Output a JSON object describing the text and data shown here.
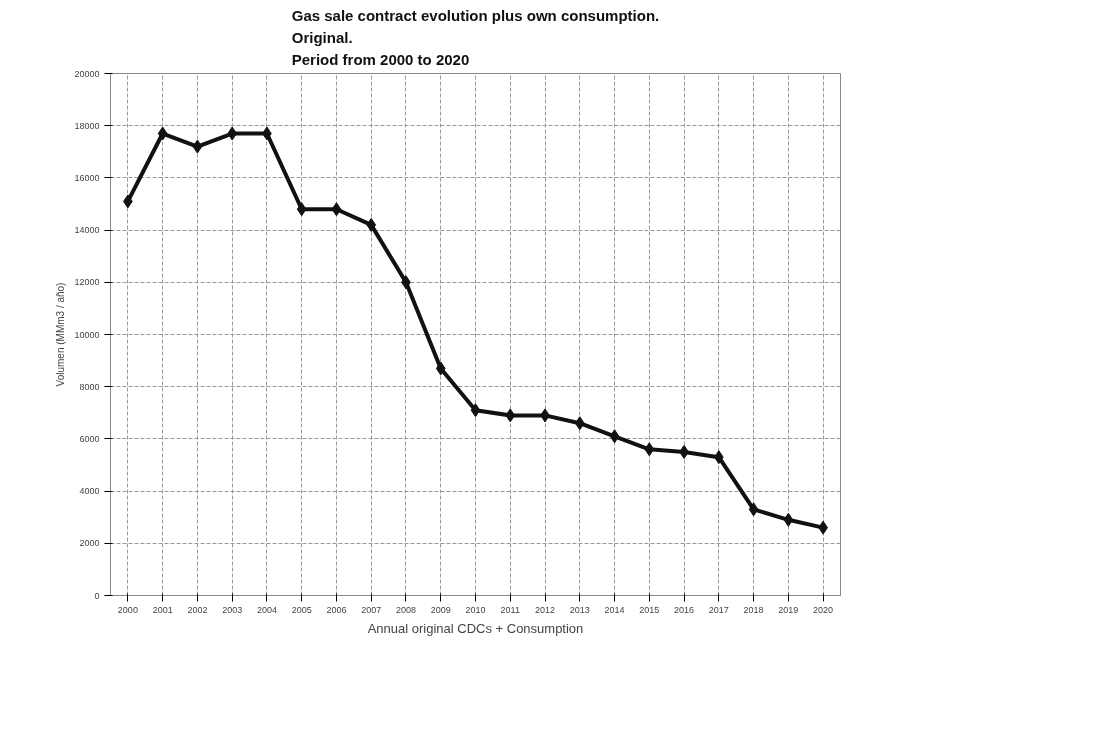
{
  "chart_data": {
    "type": "line",
    "title": "Gas sale contract evolution plus own consumption.\nOriginal.\nPeriod from 2000 to 2020",
    "xlabel": "Annual original CDCs + Consumption",
    "ylabel": "Volumen (MMm3 / año)",
    "categories": [
      "2000",
      "2001",
      "2002",
      "2003",
      "2004",
      "2005",
      "2006",
      "2007",
      "2008",
      "2009",
      "2010",
      "2011",
      "2012",
      "2013",
      "2014",
      "2015",
      "2016",
      "2017",
      "2018",
      "2019",
      "2020"
    ],
    "series": [
      {
        "color": "#111111",
        "values": [
          15100,
          17700,
          17200,
          17700,
          17700,
          14800,
          14800,
          14200,
          12000,
          8700,
          7100,
          6900,
          6900,
          6600,
          6100,
          5600,
          5500,
          5300,
          3300,
          2900,
          2600
        ]
      }
    ],
    "ylim": [
      0,
      20000
    ],
    "yticks": [
      0,
      2000,
      4000,
      6000,
      8000,
      10000,
      12000,
      14000,
      16000,
      18000,
      20000
    ],
    "grid": true,
    "marker": "diamond",
    "line_style": "solid"
  }
}
